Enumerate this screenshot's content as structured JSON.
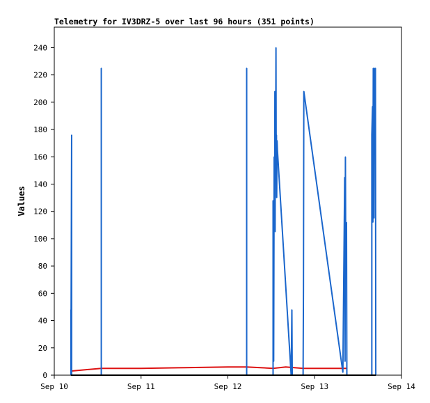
{
  "chart_data": {
    "type": "line",
    "title": "Telemetry for IV3DRZ-5 over last 96 hours (351 points)",
    "xlabel": "",
    "ylabel": "Values",
    "xlim": [
      "2024-09-10T00:00",
      "2024-09-14T00:00"
    ],
    "ylim": [
      0,
      255
    ],
    "x_ticks": [
      "Sep 10",
      "Sep 11",
      "Sep 12",
      "Sep 13",
      "Sep 14"
    ],
    "y_ticks": [
      0,
      20,
      40,
      60,
      80,
      100,
      120,
      140,
      160,
      180,
      200,
      220,
      240
    ],
    "grid": false,
    "legend": "none",
    "colors": {
      "series_blue": "#1a66cc",
      "series_red": "#dd1111",
      "series_black": "#000000"
    },
    "series": [
      {
        "color": "blue",
        "points": [
          [
            "2024-09-10T04:36",
            0
          ],
          [
            "2024-09-10T04:36",
            48
          ],
          [
            "2024-09-10T04:36",
            2
          ],
          [
            "2024-09-10T04:48",
            176
          ],
          [
            "2024-09-10T04:48",
            2
          ],
          [
            "2024-09-10T04:48",
            0
          ],
          [
            "2024-09-10T13:00",
            0
          ],
          [
            "2024-09-10T13:00",
            225
          ],
          [
            "2024-09-10T13:00",
            0
          ],
          [
            "2024-09-12T05:12",
            0
          ],
          [
            "2024-09-12T05:12",
            225
          ],
          [
            "2024-09-12T05:12",
            0
          ],
          [
            "2024-09-12T12:30",
            0
          ],
          [
            "2024-09-12T12:30",
            128
          ],
          [
            "2024-09-12T12:40",
            10
          ],
          [
            "2024-09-12T12:48",
            160
          ],
          [
            "2024-09-12T12:56",
            120
          ],
          [
            "2024-09-12T13:00",
            208
          ],
          [
            "2024-09-12T13:04",
            105
          ],
          [
            "2024-09-12T13:08",
            198
          ],
          [
            "2024-09-12T13:12",
            150
          ],
          [
            "2024-09-12T13:18",
            240
          ],
          [
            "2024-09-12T13:22",
            150
          ],
          [
            "2024-09-12T13:26",
            176
          ],
          [
            "2024-09-12T13:30",
            130
          ],
          [
            "2024-09-12T13:36",
            172
          ],
          [
            "2024-09-12T13:42",
            165
          ],
          [
            "2024-09-12T17:30",
            0
          ],
          [
            "2024-09-12T17:42",
            48
          ],
          [
            "2024-09-12T17:48",
            0
          ],
          [
            "2024-09-12T20:48",
            0
          ],
          [
            "2024-09-12T20:54",
            63
          ],
          [
            "2024-09-12T21:00",
            208
          ],
          [
            "2024-09-13T07:48",
            2
          ],
          [
            "2024-09-13T08:18",
            145
          ],
          [
            "2024-09-13T08:24",
            10
          ],
          [
            "2024-09-13T08:30",
            160
          ],
          [
            "2024-09-13T08:36",
            80
          ],
          [
            "2024-09-13T08:48",
            112
          ],
          [
            "2024-09-13T08:54",
            0
          ],
          [
            "2024-09-13T15:48",
            0
          ],
          [
            "2024-09-13T15:48",
            176
          ],
          [
            "2024-09-13T16:00",
            197
          ],
          [
            "2024-09-13T16:06",
            112
          ],
          [
            "2024-09-13T16:12",
            225
          ],
          [
            "2024-09-13T16:24",
            115
          ],
          [
            "2024-09-13T16:30",
            225
          ],
          [
            "2024-09-13T16:42",
            176
          ],
          [
            "2024-09-13T16:48",
            225
          ],
          [
            "2024-09-13T16:54",
            0
          ]
        ]
      },
      {
        "color": "red",
        "points": [
          [
            "2024-09-10T04:36",
            3
          ],
          [
            "2024-09-10T13:00",
            5
          ],
          [
            "2024-09-11T00:00",
            5
          ],
          [
            "2024-09-11T12:00",
            5.5
          ],
          [
            "2024-09-12T00:00",
            6
          ],
          [
            "2024-09-12T05:12",
            6
          ],
          [
            "2024-09-12T12:30",
            5
          ],
          [
            "2024-09-12T16:00",
            6
          ],
          [
            "2024-09-12T20:48",
            5
          ],
          [
            "2024-09-13T08:48",
            5
          ]
        ]
      },
      {
        "color": "black",
        "points": [
          [
            "2024-09-10T04:36",
            0
          ],
          [
            "2024-09-13T16:54",
            0
          ]
        ]
      }
    ]
  }
}
